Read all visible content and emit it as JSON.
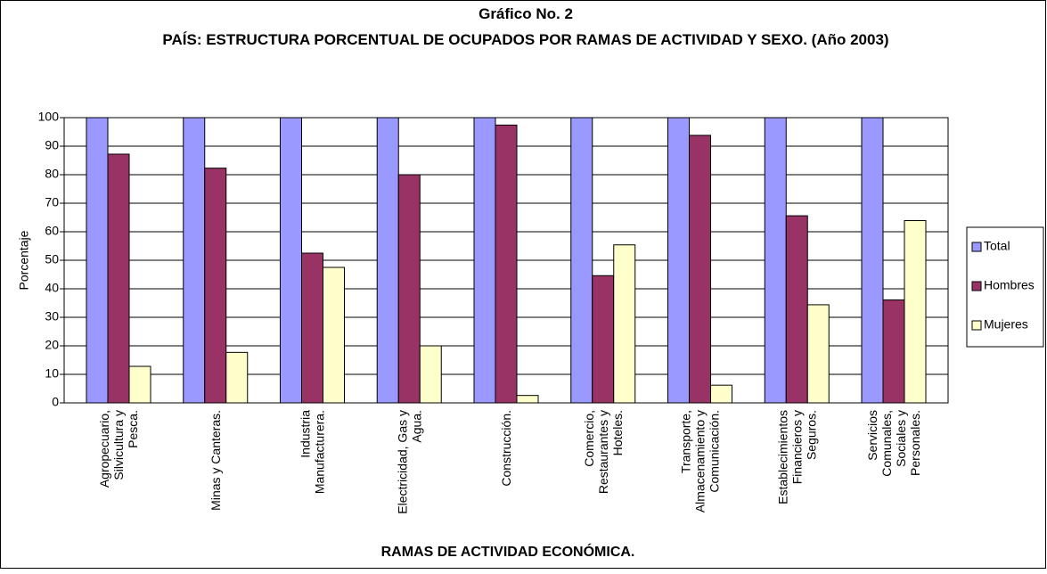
{
  "chart_data": {
    "type": "bar",
    "title": "Gráfico No. 2",
    "subtitle": "PAÍS: ESTRUCTURA PORCENTUAL DE OCUPADOS POR  RAMAS DE ACTIVIDAD Y SEXO. (Año 2003)",
    "y_label": "Porcentaje",
    "x_label": "RAMAS DE ACTIVIDAD ECONÓMICA.",
    "categories": [
      "Agropecuario, Silvicultura y Pesca.",
      "Minas y Canteras.",
      "Industria Manufacturera.",
      "Electricidad, Gas y Agua.",
      "Construcción.",
      "Comercio, Restaurantes y Hoteles.",
      "Transporte, Almacenamiento y Comunicación.",
      "Establecimientos Financieros y Seguros.",
      "Servicios Comunales, Sociales y Personales."
    ],
    "series": [
      {
        "name": "Total",
        "color": "#9999ff",
        "values": [
          100,
          100,
          100,
          100,
          100,
          100,
          100,
          100,
          100
        ]
      },
      {
        "name": "Hombres",
        "color": "#993366",
        "values": [
          87.2,
          82.3,
          52.5,
          80,
          97.4,
          44.6,
          93.8,
          65.6,
          36.1
        ]
      },
      {
        "name": "Mujeres",
        "color": "#ffffcc",
        "values": [
          12.8,
          17.7,
          47.5,
          20,
          2.6,
          55.4,
          6.2,
          34.4,
          63.9
        ]
      }
    ],
    "ylim": [
      0,
      100
    ],
    "yticks": [
      0,
      10,
      20,
      30,
      40,
      50,
      60,
      70,
      80,
      90,
      100
    ],
    "grid": true,
    "legend": "right"
  }
}
